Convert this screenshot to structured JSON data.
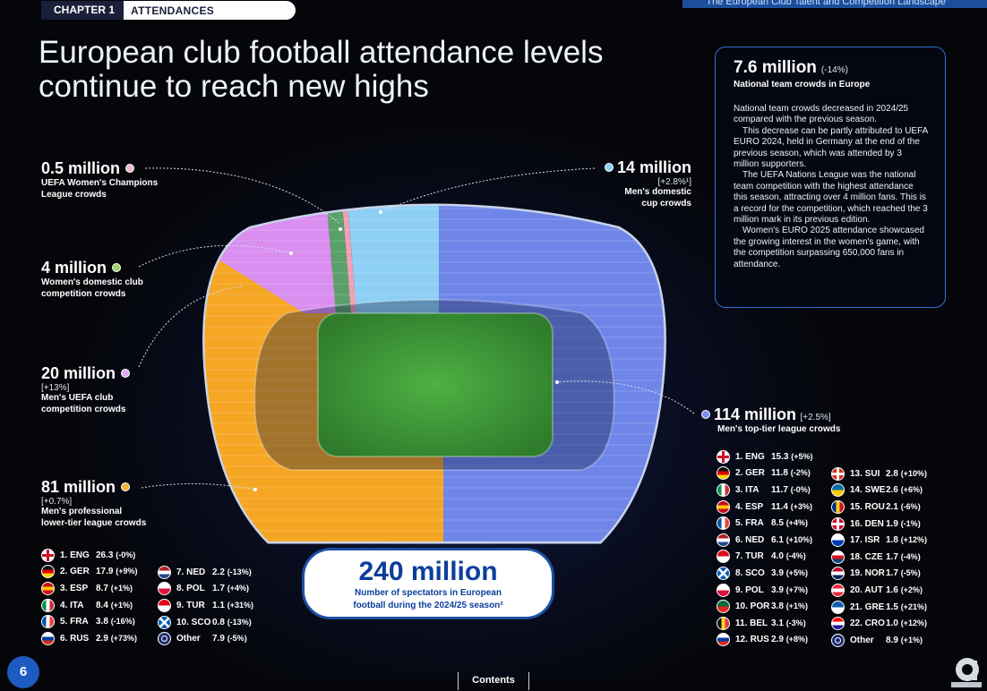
{
  "header": {
    "chapter_label": "CHAPTER 1",
    "section_label": "ATTENDANCES",
    "report_title": "The European Club Talent and Competition Landscape"
  },
  "headline": "European club football attendance levels continue to reach new highs",
  "info_box": {
    "value": "7.6 million",
    "change": "(-14%)",
    "subtitle": "National team crowds in Europe",
    "paragraphs": [
      "National team crowds decreased in 2024/25 compared with the previous season.",
      "This decrease can be partly attributed to UEFA EURO 2024, held in Germany at the end of the previous season, which was attended by 3 million supporters.",
      "The UEFA Nations League was the national team competition with the highest attendance this season, attracting over 4 million fans. This is a record for the competition, which reached the 3 million mark in its previous edition.",
      "Women's EURO 2025 attendance showcased the growing interest in the women's game, with the competition surpassing 650,000 fans in attendance."
    ]
  },
  "callouts": {
    "uwcl": {
      "value": "0.5 million",
      "label": "UEFA Women's Champions League crowds",
      "label_line1": "UEFA Women's Champions",
      "label_line2": "League crowds",
      "color": "#f2b8c6"
    },
    "women_domestic": {
      "value": "4 million",
      "label_line1": "Women's domestic club",
      "label_line2": "competition crowds",
      "color": "#9bd36a"
    },
    "uefa_club": {
      "value": "20 million",
      "change": "[+13%]",
      "label_line1": "Men's UEFA club",
      "label_line2": "competition crowds",
      "color": "#e0a8ee"
    },
    "lower_tier": {
      "value": "81 million",
      "change": "[+0.7%]",
      "label_line1": "Men's professional",
      "label_line2": "lower-tier league crowds",
      "color": "#f7b335"
    },
    "domestic_cup": {
      "value": "14 million",
      "change": "[+2.8%¹]",
      "label_line1": "Men's domestic",
      "label_line2": "cup crowds",
      "color": "#8fd3f2"
    },
    "top_tier": {
      "value": "114 million",
      "change": "[+2.5%]",
      "label": "Men's top-tier league crowds",
      "color": "#7c8ff0"
    }
  },
  "total": {
    "value": "240 million",
    "label_line1": "Number of spectators in European",
    "label_line2": "football during the 2024/25 season²"
  },
  "lower_tier_list": [
    {
      "code": "1. ENG",
      "value": "26.3",
      "change": "(-0%)",
      "flag": "ENG"
    },
    {
      "code": "2. GER",
      "value": "17.9",
      "change": "(+9%)",
      "flag": "GER"
    },
    {
      "code": "3. ESP",
      "value": "8.7",
      "change": "(+1%)",
      "flag": "ESP"
    },
    {
      "code": "4. ITA",
      "value": "8.4",
      "change": "(+1%)",
      "flag": "ITA"
    },
    {
      "code": "5. FRA",
      "value": "3.8",
      "change": "(-16%)",
      "flag": "FRA"
    },
    {
      "code": "6. RUS",
      "value": "2.9",
      "change": "(+73%)",
      "flag": "RUS"
    },
    {
      "code": "7. NED",
      "value": "2.2",
      "change": "(-13%)",
      "flag": "NED"
    },
    {
      "code": "8. POL",
      "value": "1.7",
      "change": "(+4%)",
      "flag": "POL"
    },
    {
      "code": "9. TUR",
      "value": "1.1",
      "change": "(+31%)",
      "flag": "TUR"
    },
    {
      "code": "10. SCO",
      "value": "0.8",
      "change": "(-13%)",
      "flag": "SCO"
    },
    {
      "code": "Other",
      "value": "7.9",
      "change": "(-5%)",
      "flag": "UEFA"
    }
  ],
  "top_tier_list": [
    {
      "code": "1. ENG",
      "value": "15.3",
      "change": "(+5%)",
      "flag": "ENG"
    },
    {
      "code": "2. GER",
      "value": "11.8",
      "change": "(-2%)",
      "flag": "GER"
    },
    {
      "code": "3. ITA",
      "value": "11.7",
      "change": "(-0%)",
      "flag": "ITA"
    },
    {
      "code": "4. ESP",
      "value": "11.4",
      "change": "(+3%)",
      "flag": "ESP"
    },
    {
      "code": "5. FRA",
      "value": "8.5",
      "change": "(+4%)",
      "flag": "FRA"
    },
    {
      "code": "6. NED",
      "value": "6.1",
      "change": "(+10%)",
      "flag": "NED"
    },
    {
      "code": "7. TUR",
      "value": "4.0",
      "change": "(-4%)",
      "flag": "TUR"
    },
    {
      "code": "8. SCO",
      "value": "3.9",
      "change": "(+5%)",
      "flag": "SCO"
    },
    {
      "code": "9. POL",
      "value": "3.9",
      "change": "(+7%)",
      "flag": "POL"
    },
    {
      "code": "10. POR",
      "value": "3.8",
      "change": "(+1%)",
      "flag": "POR"
    },
    {
      "code": "11. BEL",
      "value": "3.1",
      "change": "(-3%)",
      "flag": "BEL"
    },
    {
      "code": "12. RUS",
      "value": "2.9",
      "change": "(+8%)",
      "flag": "RUS"
    },
    {
      "code": "13. SUI",
      "value": "2.8",
      "change": "(+10%)",
      "flag": "SUI"
    },
    {
      "code": "14. SWE",
      "value": "2.6",
      "change": "(+6%)",
      "flag": "SWE"
    },
    {
      "code": "15. ROU",
      "value": "2.1",
      "change": "(-6%)",
      "flag": "ROU"
    },
    {
      "code": "16. DEN",
      "value": "1.9",
      "change": "(-1%)",
      "flag": "DEN"
    },
    {
      "code": "17. ISR",
      "value": "1.8",
      "change": "(+12%)",
      "flag": "ISR"
    },
    {
      "code": "18. CZE",
      "value": "1.7",
      "change": "(-4%)",
      "flag": "CZE"
    },
    {
      "code": "19. NOR",
      "value": "1.7",
      "change": "(-5%)",
      "flag": "NOR"
    },
    {
      "code": "20. AUT",
      "value": "1.6",
      "change": "(+2%)",
      "flag": "AUT"
    },
    {
      "code": "21. GRE",
      "value": "1.5",
      "change": "(+21%)",
      "flag": "GRE"
    },
    {
      "code": "22. CRO",
      "value": "1.0",
      "change": "(+12%)",
      "flag": "CRO"
    },
    {
      "code": "Other",
      "value": "8.9",
      "change": "(+1%)",
      "flag": "UEFA"
    }
  ],
  "footer": {
    "page_number": "6",
    "contents_label": "Contents"
  },
  "segment_colors": {
    "top_tier": "#6f86e8",
    "lower_tier": "#f5a623",
    "uefa_club": "#d98ef0",
    "women_domestic": "#5aa06a",
    "uwcl": "#f0a0b4",
    "domestic_cup": "#8ed0f5",
    "pitch": "#3f9b3a"
  },
  "flag_colors": {
    "ENG": [
      "#ffffff",
      "#d0102a"
    ],
    "GER": [
      "#111111",
      "#dd0000",
      "#ffce00"
    ],
    "ESP": [
      "#c60b1e",
      "#ffc400",
      "#c60b1e"
    ],
    "ITA": [
      "#009246",
      "#ffffff",
      "#ce2b37"
    ],
    "FRA": [
      "#0055a4",
      "#ffffff",
      "#ef4135"
    ],
    "RUS": [
      "#ffffff",
      "#0039a6",
      "#d52b1e"
    ],
    "NED": [
      "#ae1c28",
      "#ffffff",
      "#21468b"
    ],
    "POL": [
      "#ffffff",
      "#dc143c"
    ],
    "TUR": [
      "#e30a17",
      "#ffffff"
    ],
    "SCO": [
      "#005eb8",
      "#ffffff"
    ],
    "POR": [
      "#046a38",
      "#da291c"
    ],
    "BEL": [
      "#111111",
      "#fdda24",
      "#ef3340"
    ],
    "SUI": [
      "#d52b1e",
      "#ffffff"
    ],
    "SWE": [
      "#006aa7",
      "#fecc00"
    ],
    "ROU": [
      "#002b7f",
      "#fcd116",
      "#ce1126"
    ],
    "DEN": [
      "#c8102e",
      "#ffffff"
    ],
    "ISR": [
      "#ffffff",
      "#0038b8"
    ],
    "CZE": [
      "#ffffff",
      "#d7141a",
      "#11457e"
    ],
    "NOR": [
      "#ba0c2f",
      "#ffffff",
      "#00205b"
    ],
    "AUT": [
      "#ed2939",
      "#ffffff",
      "#ed2939"
    ],
    "GRE": [
      "#0d5eaf",
      "#ffffff"
    ],
    "CRO": [
      "#ff0000",
      "#ffffff",
      "#171796"
    ],
    "UEFA": [
      "#1a2a6c",
      "#ffffff"
    ]
  }
}
